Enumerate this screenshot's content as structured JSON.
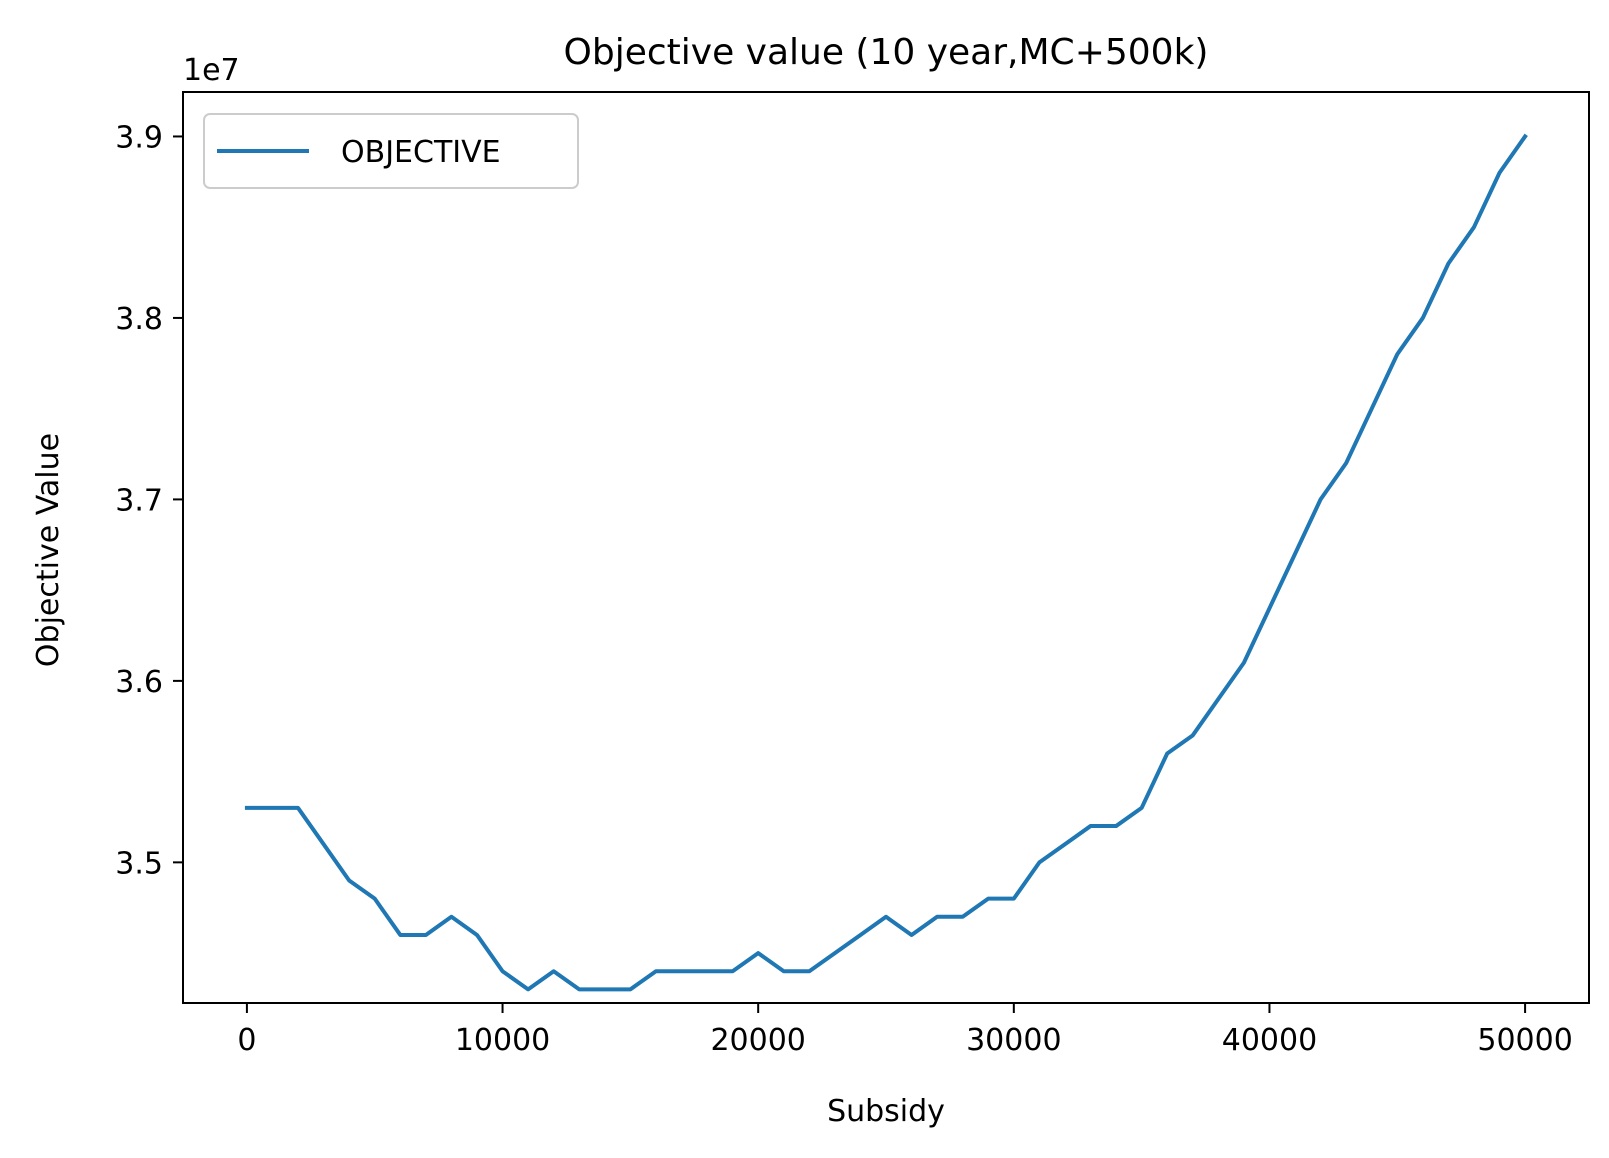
{
  "chart_data": {
    "type": "line",
    "title": "Objective value (10 year,MC+500k)",
    "xlabel": "Subsidy",
    "ylabel": "Objective Value",
    "y_offset_label": "1e7",
    "y_multiplier": 10000000,
    "xlim": [
      -2500,
      52500
    ],
    "ylim": [
      3.4225,
      3.9245
    ],
    "x_ticks": [
      0,
      10000,
      20000,
      30000,
      40000,
      50000
    ],
    "x_tick_labels": [
      "0",
      "10000",
      "20000",
      "30000",
      "40000",
      "50000"
    ],
    "y_ticks": [
      3.5,
      3.6,
      3.7,
      3.8,
      3.9
    ],
    "y_tick_labels": [
      "3.5",
      "3.6",
      "3.7",
      "3.8",
      "3.9"
    ],
    "grid": false,
    "legend_position": "top-left",
    "series": [
      {
        "name": "OBJECTIVE",
        "color": "#1f77b4",
        "x": [
          0,
          1000,
          2000,
          3000,
          4000,
          5000,
          6000,
          7000,
          8000,
          9000,
          10000,
          11000,
          12000,
          13000,
          14000,
          15000,
          16000,
          17000,
          18000,
          19000,
          20000,
          21000,
          22000,
          23000,
          24000,
          25000,
          26000,
          27000,
          28000,
          29000,
          30000,
          31000,
          32000,
          33000,
          34000,
          35000,
          36000,
          37000,
          38000,
          39000,
          40000,
          41000,
          42000,
          43000,
          44000,
          45000,
          46000,
          47000,
          48000,
          49000,
          50000
        ],
        "values": [
          3.53,
          3.53,
          3.53,
          3.51,
          3.49,
          3.48,
          3.46,
          3.46,
          3.47,
          3.46,
          3.44,
          3.43,
          3.44,
          3.43,
          3.43,
          3.43,
          3.44,
          3.44,
          3.44,
          3.44,
          3.45,
          3.44,
          3.44,
          3.45,
          3.46,
          3.47,
          3.46,
          3.47,
          3.47,
          3.48,
          3.48,
          3.5,
          3.51,
          3.52,
          3.52,
          3.53,
          3.56,
          3.57,
          3.59,
          3.61,
          3.64,
          3.67,
          3.7,
          3.72,
          3.75,
          3.78,
          3.8,
          3.83,
          3.85,
          3.88,
          3.9
        ]
      }
    ]
  }
}
